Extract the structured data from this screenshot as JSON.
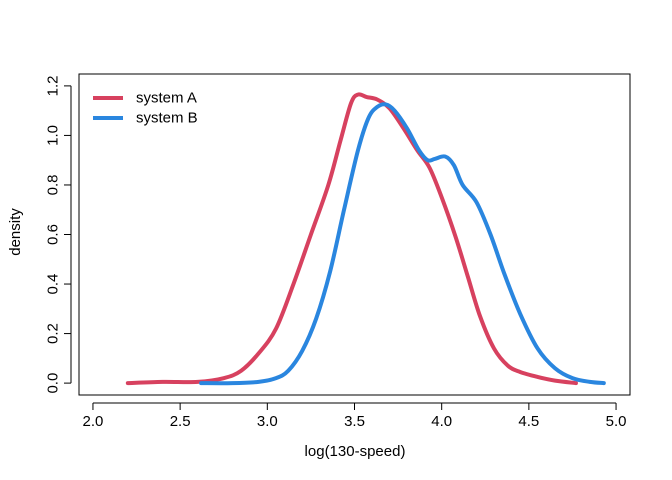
{
  "chart_data": {
    "type": "line",
    "title": "",
    "xlabel": "log(130-speed)",
    "ylabel": "density",
    "xlim": [
      1.92,
      5.08
    ],
    "ylim": [
      -0.048,
      1.248
    ],
    "x_ticks": [
      2.0,
      2.5,
      3.0,
      3.5,
      4.0,
      4.5,
      5.0
    ],
    "x_tick_labels": [
      "2.0",
      "2.5",
      "3.0",
      "3.5",
      "4.0",
      "4.5",
      "5.0"
    ],
    "y_ticks": [
      0.0,
      0.2,
      0.4,
      0.6,
      0.8,
      1.0,
      1.2
    ],
    "y_tick_labels": [
      "0.0",
      "0.2",
      "0.4",
      "0.6",
      "0.8",
      "1.0",
      "1.2"
    ],
    "grid": false,
    "legend_position": "top-left",
    "series": [
      {
        "name": "system A",
        "color": "#d7415f",
        "points": [
          [
            2.2,
            0.0
          ],
          [
            2.4,
            0.005
          ],
          [
            2.6,
            0.005
          ],
          [
            2.75,
            0.02
          ],
          [
            2.85,
            0.05
          ],
          [
            2.95,
            0.12
          ],
          [
            3.05,
            0.22
          ],
          [
            3.15,
            0.4
          ],
          [
            3.25,
            0.6
          ],
          [
            3.35,
            0.8
          ],
          [
            3.42,
            0.98
          ],
          [
            3.48,
            1.13
          ],
          [
            3.52,
            1.165
          ],
          [
            3.57,
            1.155
          ],
          [
            3.63,
            1.145
          ],
          [
            3.7,
            1.11
          ],
          [
            3.78,
            1.03
          ],
          [
            3.86,
            0.94
          ],
          [
            3.93,
            0.87
          ],
          [
            4.0,
            0.75
          ],
          [
            4.08,
            0.59
          ],
          [
            4.15,
            0.43
          ],
          [
            4.22,
            0.27
          ],
          [
            4.3,
            0.14
          ],
          [
            4.38,
            0.07
          ],
          [
            4.45,
            0.045
          ],
          [
            4.55,
            0.025
          ],
          [
            4.65,
            0.01
          ],
          [
            4.77,
            0.0
          ]
        ]
      },
      {
        "name": "system B",
        "color": "#2a86df",
        "points": [
          [
            2.62,
            0.0
          ],
          [
            2.8,
            0.0
          ],
          [
            2.95,
            0.005
          ],
          [
            3.05,
            0.02
          ],
          [
            3.12,
            0.05
          ],
          [
            3.2,
            0.13
          ],
          [
            3.28,
            0.26
          ],
          [
            3.36,
            0.45
          ],
          [
            3.44,
            0.7
          ],
          [
            3.52,
            0.94
          ],
          [
            3.58,
            1.07
          ],
          [
            3.63,
            1.115
          ],
          [
            3.68,
            1.125
          ],
          [
            3.73,
            1.1
          ],
          [
            3.8,
            1.03
          ],
          [
            3.87,
            0.94
          ],
          [
            3.92,
            0.9
          ],
          [
            3.96,
            0.905
          ],
          [
            4.02,
            0.915
          ],
          [
            4.07,
            0.88
          ],
          [
            4.12,
            0.8
          ],
          [
            4.2,
            0.73
          ],
          [
            4.28,
            0.6
          ],
          [
            4.36,
            0.44
          ],
          [
            4.45,
            0.28
          ],
          [
            4.55,
            0.14
          ],
          [
            4.65,
            0.06
          ],
          [
            4.75,
            0.02
          ],
          [
            4.85,
            0.005
          ],
          [
            4.93,
            0.0
          ]
        ]
      }
    ]
  }
}
